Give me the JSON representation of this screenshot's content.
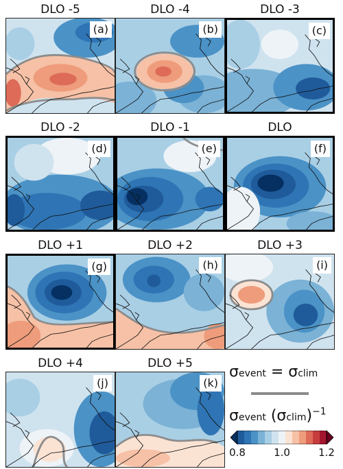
{
  "panels": [
    {
      "title": "DLO -5",
      "tag": "(a)",
      "bold": false,
      "scene": "a"
    },
    {
      "title": "DLO -4",
      "tag": "(b)",
      "bold": false,
      "scene": "b"
    },
    {
      "title": "DLO -3",
      "tag": "(c)",
      "bold": true,
      "scene": "c"
    },
    {
      "title": "DLO -2",
      "tag": "(d)",
      "bold": true,
      "scene": "d"
    },
    {
      "title": "DLO -1",
      "tag": "(e)",
      "bold": true,
      "scene": "e"
    },
    {
      "title": "DLO",
      "tag": "(f)",
      "bold": true,
      "scene": "f"
    },
    {
      "title": "DLO +1",
      "tag": "(g)",
      "bold": true,
      "scene": "g"
    },
    {
      "title": "DLO +2",
      "tag": "(h)",
      "bold": false,
      "scene": "h"
    },
    {
      "title": "DLO +3",
      "tag": "(i)",
      "bold": false,
      "scene": "i"
    },
    {
      "title": "DLO +4",
      "tag": "(j)",
      "bold": false,
      "scene": "j"
    },
    {
      "title": "DLO +5",
      "tag": "(k)",
      "bold": false,
      "scene": "k"
    }
  ],
  "legend": {
    "equality": {
      "sigma": "σ",
      "lhs_sub": "event",
      "eq": " = ",
      "rhs_sub": "clim",
      "line_color": "#8c8c8c"
    },
    "colorbar_title": {
      "sigma": "σ",
      "sub1": "event",
      "open": " (",
      "sub2": "clim",
      "close": ")",
      "exponent": "−1"
    },
    "colorbar": {
      "min": 0.8,
      "max": 1.2,
      "ticks": [
        "0.8",
        "1.0",
        "1.2"
      ],
      "tick_values": [
        0.8,
        1.0,
        1.2
      ],
      "colors": [
        "#053061",
        "#1f5b9b",
        "#2f75b5",
        "#4b92c6",
        "#7bb2d6",
        "#a9cfe5",
        "#cfe3ef",
        "#eef3f7",
        "#fbe3d4",
        "#f6c1a6",
        "#ee9c7b",
        "#dd6b58",
        "#c63c3e",
        "#a4162f",
        "#67001f"
      ]
    }
  }
}
